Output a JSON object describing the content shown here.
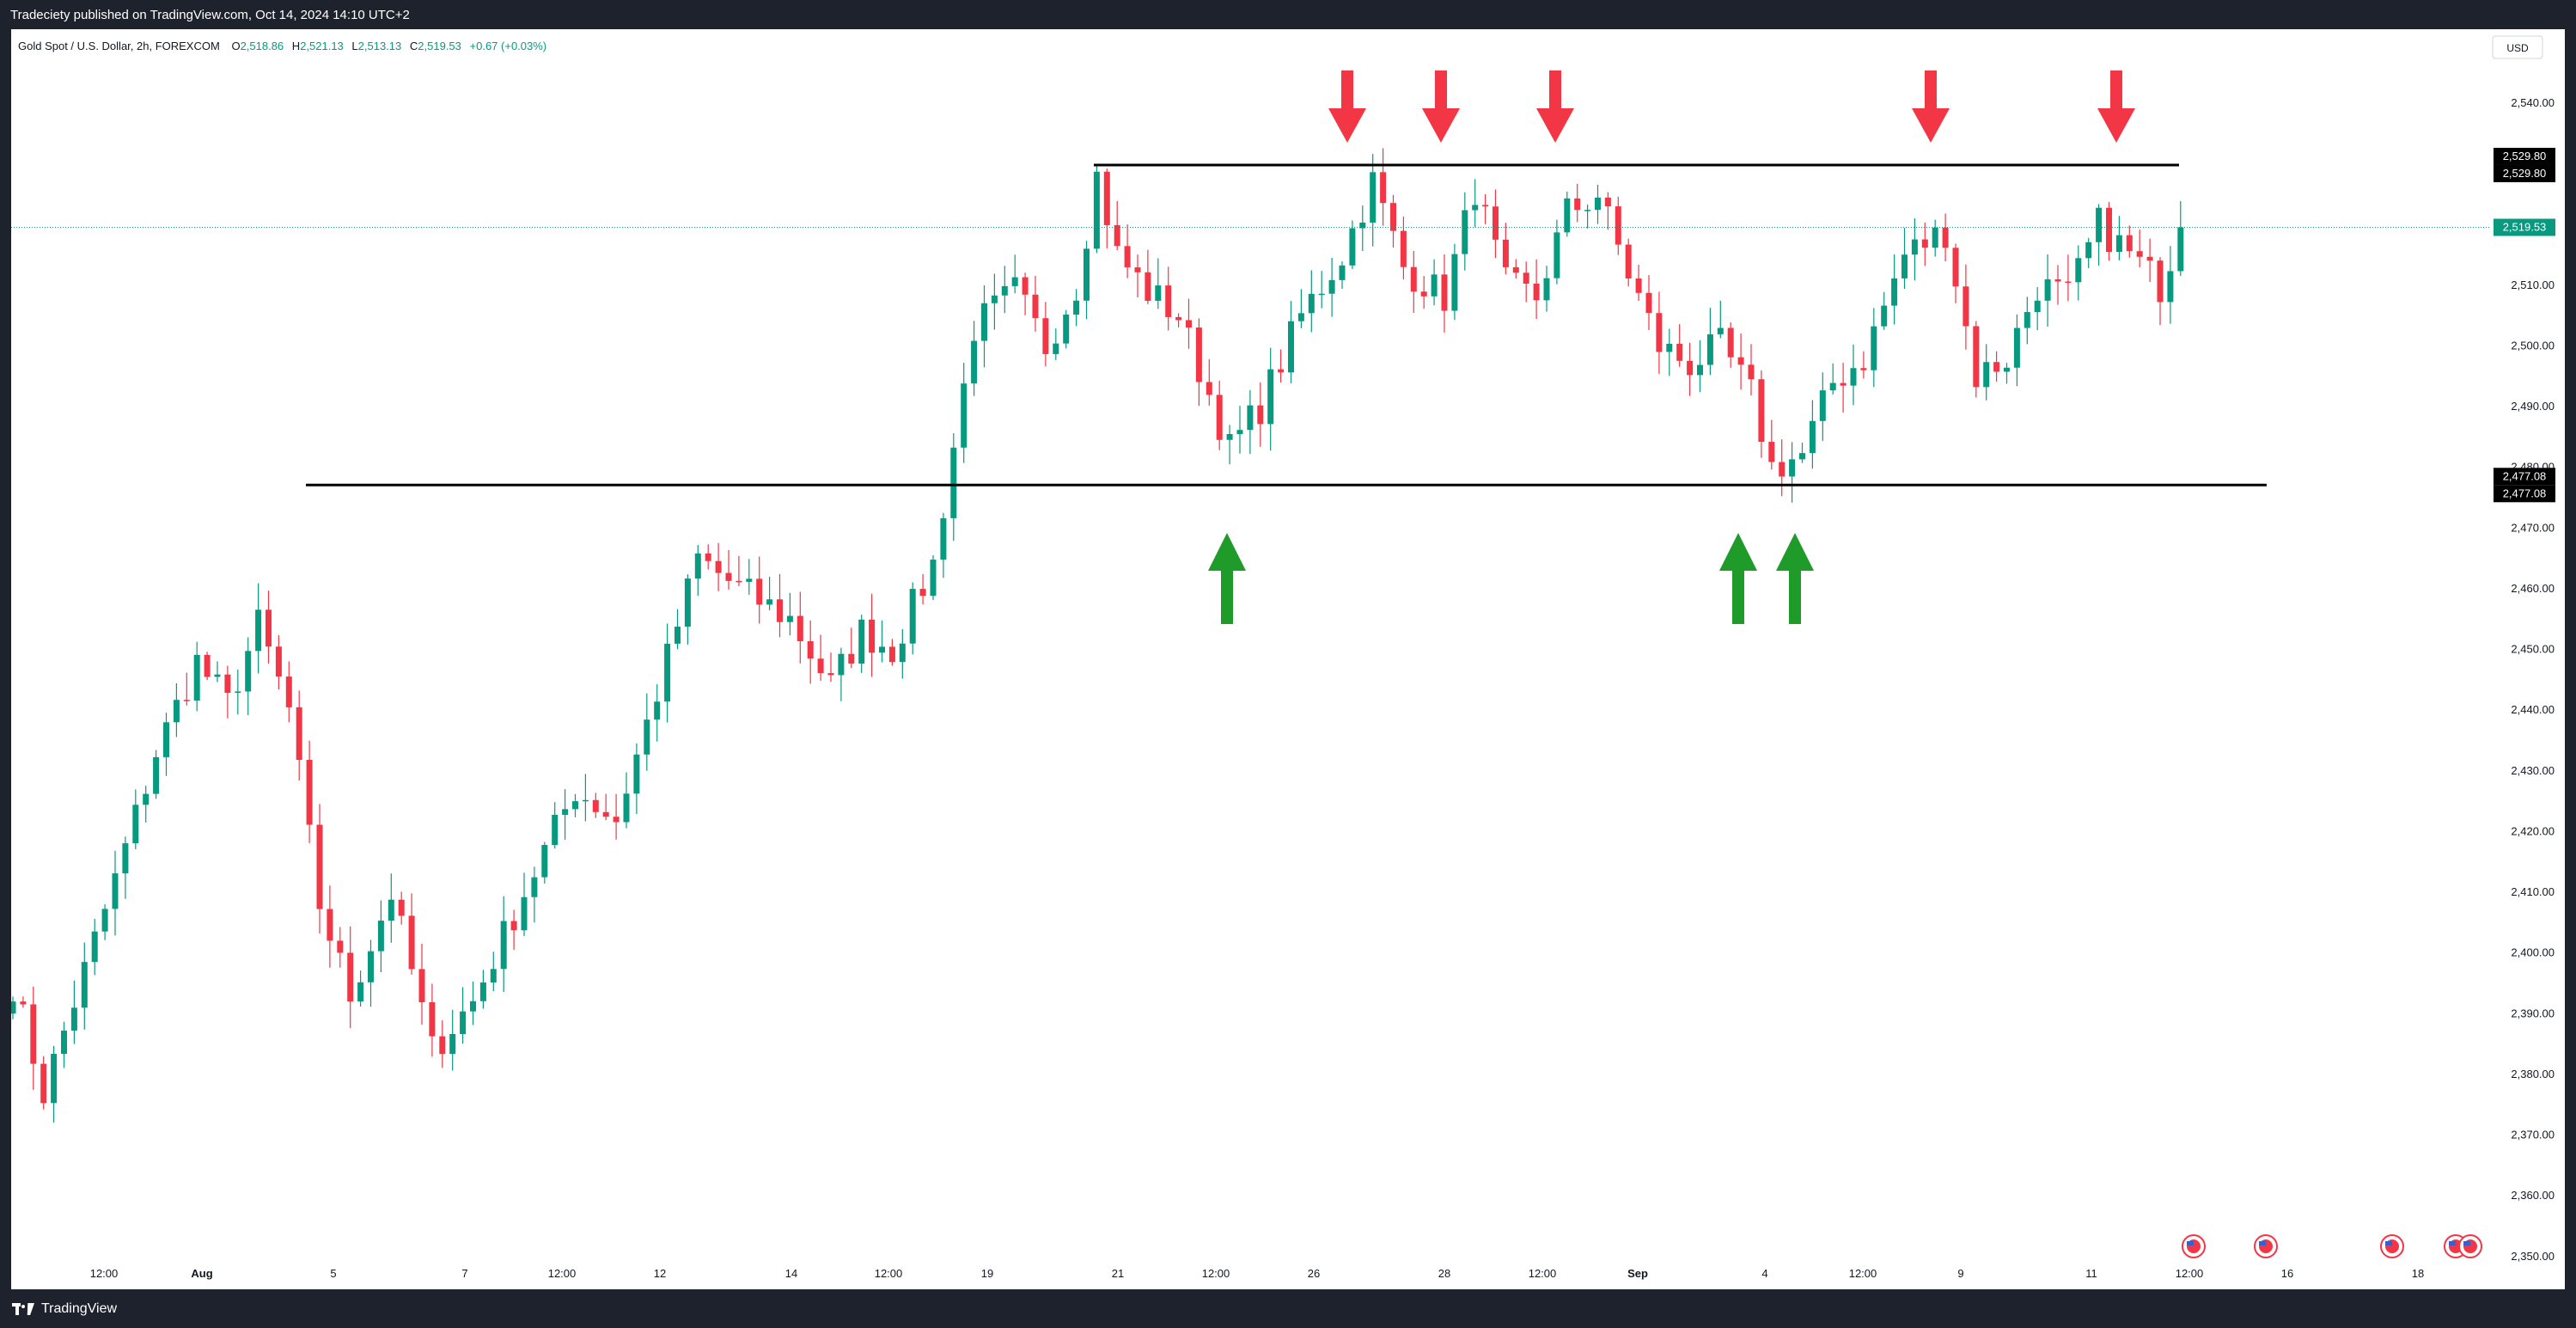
{
  "publisher": {
    "text": "Tradeciety published on TradingView.com, Oct 14, 2024 14:10 UTC+2"
  },
  "legend": {
    "symbol": "Gold Spot / U.S. Dollar, 2h, FOREXCOM",
    "o_label": "O",
    "o_value": "2,518.86",
    "h_label": "H",
    "h_value": "2,521.13",
    "l_label": "L",
    "l_value": "2,513.13",
    "c_label": "C",
    "c_value": "2,519.53",
    "change": "+0.67 (+0.03%)"
  },
  "currency": "USD",
  "footer": {
    "brand": "TradingView"
  },
  "colors": {
    "up": "#089981",
    "down": "#f23645",
    "arrow_up": "#1e9b28",
    "arrow_down": "#f23645",
    "line": "#000000",
    "axis_text": "#131722"
  },
  "chart_data": {
    "type": "candlestick",
    "timeframe": "2h",
    "y_axis": {
      "ylim": [
        2346,
        2547
      ],
      "ticks": [
        "2,540.00",
        "2,530.00",
        "2,520.00",
        "2,510.00",
        "2,500.00",
        "2,490.00",
        "2,480.00",
        "2,470.00",
        "2,460.00",
        "2,450.00",
        "2,440.00",
        "2,430.00",
        "2,420.00",
        "2,410.00",
        "2,400.00",
        "2,390.00",
        "2,380.00",
        "2,370.00",
        "2,360.00",
        "2,350.00"
      ]
    },
    "x_axis": {
      "ticks": [
        "12:00",
        "Aug",
        "5",
        "7",
        "12:00",
        "12",
        "14",
        "12:00",
        "19",
        "21",
        "12:00",
        "26",
        "28",
        "12:00",
        "Sep",
        "4",
        "12:00",
        "9",
        "11",
        "12:00",
        "16",
        "18"
      ]
    },
    "horizontal_levels": [
      {
        "label": "2,529.80",
        "value": 2529.8
      },
      {
        "label": "2,477.08",
        "value": 2477.08
      }
    ],
    "last_price": {
      "label": "2,519.53",
      "value": 2519.53
    },
    "annotations": {
      "resistance_touch_arrows": 5,
      "support_touch_arrows": 3
    },
    "close_path": [
      [
        0,
        2395
      ],
      [
        3,
        2377
      ],
      [
        6,
        2392
      ],
      [
        10,
        2412
      ],
      [
        14,
        2433
      ],
      [
        18,
        2448
      ],
      [
        21,
        2441
      ],
      [
        24,
        2454
      ],
      [
        27,
        2440
      ],
      [
        30,
        2408
      ],
      [
        33,
        2393
      ],
      [
        37,
        2410
      ],
      [
        41,
        2384
      ],
      [
        45,
        2392
      ],
      [
        50,
        2410
      ],
      [
        55,
        2427
      ],
      [
        59,
        2422
      ],
      [
        63,
        2443
      ],
      [
        67,
        2465
      ],
      [
        71,
        2460
      ],
      [
        76,
        2455
      ],
      [
        80,
        2444
      ],
      [
        83,
        2453
      ],
      [
        86,
        2450
      ],
      [
        90,
        2464
      ],
      [
        94,
        2503
      ],
      [
        98,
        2509
      ],
      [
        101,
        2500
      ],
      [
        104,
        2510
      ],
      [
        106,
        2528
      ],
      [
        108,
        2515
      ],
      [
        111,
        2509
      ],
      [
        114,
        2505
      ],
      [
        117,
        2492
      ],
      [
        119,
        2483
      ],
      [
        122,
        2490
      ],
      [
        126,
        2505
      ],
      [
        130,
        2515
      ],
      [
        133,
        2527
      ],
      [
        136,
        2513
      ],
      [
        140,
        2508
      ],
      [
        143,
        2526
      ],
      [
        146,
        2510
      ],
      [
        149,
        2508
      ],
      [
        152,
        2522
      ],
      [
        155,
        2525
      ],
      [
        158,
        2512
      ],
      [
        161,
        2500
      ],
      [
        164,
        2497
      ],
      [
        167,
        2500
      ],
      [
        170,
        2492
      ],
      [
        172,
        2480
      ],
      [
        175,
        2482
      ],
      [
        178,
        2494
      ],
      [
        181,
        2498
      ],
      [
        185,
        2515
      ],
      [
        189,
        2519
      ],
      [
        192,
        2495
      ],
      [
        195,
        2498
      ],
      [
        198,
        2510
      ],
      [
        201,
        2508
      ],
      [
        204,
        2520
      ],
      [
        207,
        2515
      ],
      [
        210,
        2510
      ],
      [
        212,
        2519
      ]
    ]
  }
}
